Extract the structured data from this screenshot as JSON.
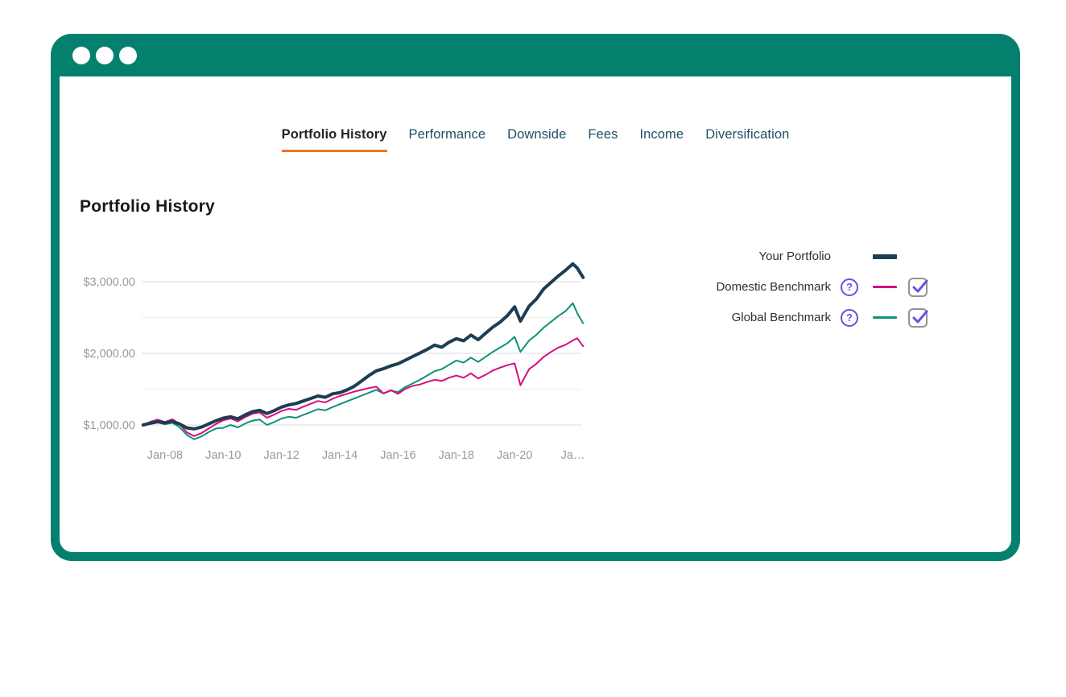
{
  "window": {
    "traffic_dots": [
      "dot",
      "dot",
      "dot"
    ]
  },
  "tabs": [
    {
      "label": "Portfolio History",
      "active": true
    },
    {
      "label": "Performance",
      "active": false
    },
    {
      "label": "Downside",
      "active": false
    },
    {
      "label": "Fees",
      "active": false
    },
    {
      "label": "Income",
      "active": false
    },
    {
      "label": "Diversification",
      "active": false
    }
  ],
  "page": {
    "title": "Portfolio History"
  },
  "legend": [
    {
      "label": "Your Portfolio",
      "color": "#1D3D52",
      "swatch_thickness": 6,
      "has_help": false,
      "has_checkbox": false,
      "checked": false
    },
    {
      "label": "Domestic Benchmark",
      "color": "#D50F7F",
      "swatch_thickness": 3,
      "has_help": true,
      "help_glyph": "?",
      "has_checkbox": true,
      "checked": true
    },
    {
      "label": "Global Benchmark",
      "color": "#0F917A",
      "swatch_thickness": 3,
      "has_help": true,
      "help_glyph": "?",
      "has_checkbox": true,
      "checked": true
    }
  ],
  "colors": {
    "frame_teal": "#04816E",
    "accent_orange": "#EE7623",
    "portfolio_navy": "#1D3D52",
    "domestic_magenta": "#D50F7F",
    "global_teal": "#0F917A",
    "control_purple": "#6B4FDF",
    "grid_major": "#DBDBDB",
    "grid_minor": "#EDEDED",
    "axis_text": "#9A9A9A"
  },
  "chart_data": {
    "type": "line",
    "title": "Portfolio History",
    "xlabel": "",
    "ylabel": "",
    "xlim": [
      2007.2,
      2022.4
    ],
    "ylim_values": [
      750,
      3350
    ],
    "grid": "horizontal",
    "legend_position": "right",
    "y_ticks": [
      {
        "value": 1000,
        "label": "$1,000.00"
      },
      {
        "value": 2000,
        "label": "$2,000.00"
      },
      {
        "value": 3000,
        "label": "$3,000.00"
      }
    ],
    "y_gridlines_minor": [
      1500,
      2500
    ],
    "x_ticks": [
      {
        "value": 2008,
        "label": "Jan-08"
      },
      {
        "value": 2010,
        "label": "Jan-10"
      },
      {
        "value": 2012,
        "label": "Jan-12"
      },
      {
        "value": 2014,
        "label": "Jan-14"
      },
      {
        "value": 2016,
        "label": "Jan-16"
      },
      {
        "value": 2018,
        "label": "Jan-18"
      },
      {
        "value": 2020,
        "label": "Jan-20"
      },
      {
        "value": 2022,
        "label": "Ja…"
      }
    ],
    "x": [
      2007.25,
      2007.5,
      2007.75,
      2008,
      2008.25,
      2008.5,
      2008.75,
      2009,
      2009.25,
      2009.5,
      2009.75,
      2010,
      2010.25,
      2010.5,
      2010.75,
      2011,
      2011.25,
      2011.5,
      2011.75,
      2012,
      2012.25,
      2012.5,
      2012.75,
      2013,
      2013.25,
      2013.5,
      2013.75,
      2014,
      2014.25,
      2014.5,
      2014.75,
      2015,
      2015.25,
      2015.5,
      2015.75,
      2016,
      2016.25,
      2016.5,
      2016.75,
      2017,
      2017.25,
      2017.5,
      2017.75,
      2018,
      2018.25,
      2018.5,
      2018.75,
      2019,
      2019.25,
      2019.5,
      2019.75,
      2020,
      2020.2,
      2020.5,
      2020.75,
      2021,
      2021.25,
      2021.5,
      2021.75,
      2022,
      2022.15,
      2022.35
    ],
    "series": [
      {
        "name": "Global Benchmark",
        "color": "#0F917A",
        "line_width": 2,
        "values": [
          1000,
          1015,
          1035,
          1010,
          1030,
          970,
          860,
          800,
          840,
          900,
          950,
          960,
          1000,
          965,
          1020,
          1060,
          1075,
          1000,
          1040,
          1090,
          1115,
          1100,
          1140,
          1180,
          1220,
          1205,
          1250,
          1290,
          1330,
          1370,
          1410,
          1450,
          1490,
          1440,
          1480,
          1460,
          1530,
          1580,
          1630,
          1690,
          1750,
          1780,
          1840,
          1900,
          1870,
          1940,
          1880,
          1950,
          2020,
          2080,
          2140,
          2230,
          2020,
          2180,
          2260,
          2360,
          2440,
          2520,
          2590,
          2700,
          2560,
          2420
        ]
      },
      {
        "name": "Domestic Benchmark",
        "color": "#D50F7F",
        "line_width": 2,
        "values": [
          1000,
          1045,
          1075,
          1040,
          1080,
          1015,
          895,
          845,
          885,
          950,
          1015,
          1065,
          1090,
          1050,
          1110,
          1155,
          1175,
          1100,
          1145,
          1195,
          1225,
          1210,
          1255,
          1295,
          1335,
          1315,
          1365,
          1405,
          1435,
          1465,
          1490,
          1515,
          1535,
          1440,
          1485,
          1435,
          1505,
          1545,
          1565,
          1600,
          1630,
          1615,
          1660,
          1690,
          1660,
          1720,
          1650,
          1700,
          1760,
          1800,
          1835,
          1860,
          1555,
          1780,
          1855,
          1950,
          2020,
          2080,
          2120,
          2180,
          2210,
          2100
        ]
      },
      {
        "name": "Your Portfolio",
        "color": "#1D3D52",
        "line_width": 4,
        "values": [
          1000,
          1025,
          1045,
          1030,
          1050,
          1015,
          960,
          945,
          970,
          1015,
          1060,
          1095,
          1115,
          1085,
          1140,
          1185,
          1205,
          1160,
          1200,
          1250,
          1280,
          1300,
          1335,
          1370,
          1405,
          1385,
          1435,
          1450,
          1490,
          1540,
          1615,
          1690,
          1755,
          1785,
          1825,
          1855,
          1905,
          1955,
          2005,
          2055,
          2115,
          2085,
          2155,
          2205,
          2175,
          2255,
          2190,
          2280,
          2365,
          2435,
          2525,
          2650,
          2450,
          2660,
          2760,
          2900,
          2990,
          3080,
          3160,
          3250,
          3190,
          3060
        ]
      }
    ]
  }
}
